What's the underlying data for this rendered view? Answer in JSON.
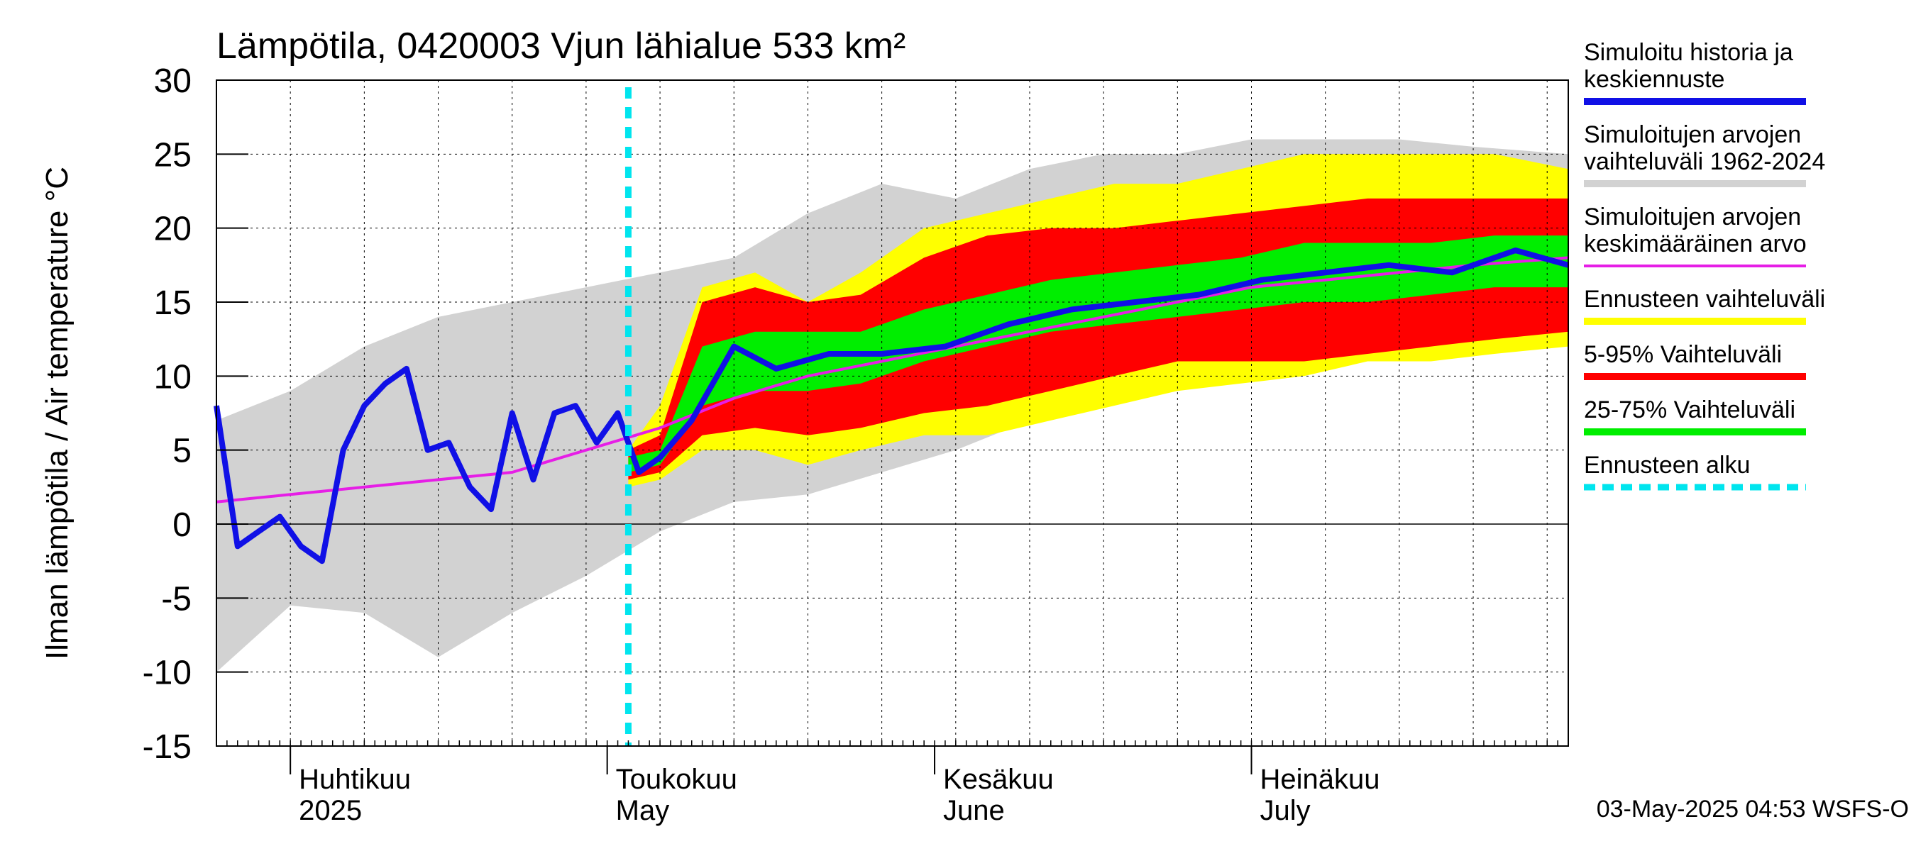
{
  "title": "Lämpötila, 0420003 Vjun lähialue 533 km²",
  "footer": "03-May-2025 04:53 WSFS-O",
  "colors": {
    "history": "#1010e6",
    "range_1962_2024": "#d2d2d2",
    "mean": "#e61ee6",
    "forecast_range": "#ffff00",
    "p5_95": "#ff0000",
    "p25_75": "#00ee00",
    "forecast_start": "#00e5ee"
  },
  "chart_data": {
    "type": "area",
    "title": "Lämpötila, 0420003 Vjun lähialue 533 km²",
    "ylabel": "Ilman lämpötila / Air temperature   °C",
    "ylim": [
      -15,
      30
    ],
    "yticks": [
      -15,
      -10,
      -5,
      0,
      5,
      10,
      15,
      20,
      25,
      30
    ],
    "xlim": [
      "2025-03-25",
      "2025-07-31"
    ],
    "grid": true,
    "forecast_start": "2025-05-03",
    "month_labels": [
      {
        "fi": "Huhtikuu",
        "en": "2025",
        "date": "2025-04-01"
      },
      {
        "fi": "Toukokuu",
        "en": "May",
        "date": "2025-05-01"
      },
      {
        "fi": "Kesäkuu",
        "en": "June",
        "date": "2025-06-01"
      },
      {
        "fi": "Heinäkuu",
        "en": "July",
        "date": "2025-07-01"
      }
    ],
    "legend": {
      "placement": "right",
      "entries": [
        {
          "label": [
            "Simuloitu historia ja",
            "keskiennuste"
          ],
          "color_key": "history",
          "style": "solid"
        },
        {
          "label": [
            "Simuloitujen arvojen",
            "vaihteluväli 1962-2024"
          ],
          "color_key": "range_1962_2024",
          "style": "solid"
        },
        {
          "label": [
            "Simuloitujen arvojen",
            "keskimääräinen arvo"
          ],
          "color_key": "mean",
          "style": "thin"
        },
        {
          "label": [
            "Ennusteen vaihteluväli"
          ],
          "color_key": "forecast_range",
          "style": "solid"
        },
        {
          "label": [
            "5-95% Vaihteluväli"
          ],
          "color_key": "p5_95",
          "style": "solid"
        },
        {
          "label": [
            "25-75% Vaihteluväli"
          ],
          "color_key": "p25_75",
          "style": "solid"
        },
        {
          "label": [
            "Ennusteen alku"
          ],
          "color_key": "forecast_start",
          "style": "dashed"
        }
      ]
    },
    "series": [
      {
        "name": "Simulated history range 1962-2024",
        "kind": "band",
        "x": [
          "2025-03-25",
          "2025-04-01",
          "2025-04-08",
          "2025-04-15",
          "2025-04-22",
          "2025-04-29",
          "2025-05-06",
          "2025-05-13",
          "2025-05-20",
          "2025-05-27",
          "2025-06-03",
          "2025-06-10",
          "2025-06-17",
          "2025-06-24",
          "2025-07-01",
          "2025-07-08",
          "2025-07-15",
          "2025-07-22",
          "2025-07-31"
        ],
        "low": [
          -10,
          -5.5,
          -6,
          -9,
          -6,
          -3.5,
          -0.5,
          1.5,
          2,
          3.5,
          5,
          7,
          8,
          9.5,
          10,
          11,
          12,
          12.5,
          12.5
        ],
        "high": [
          7,
          9,
          12,
          14,
          15,
          16,
          17,
          18,
          21,
          23,
          22,
          24,
          25,
          25,
          26,
          26,
          26,
          25.5,
          25
        ]
      },
      {
        "name": "Forecast range",
        "kind": "band",
        "x": [
          "2025-05-03",
          "2025-05-06",
          "2025-05-10",
          "2025-05-15",
          "2025-05-20",
          "2025-05-25",
          "2025-05-31",
          "2025-06-06",
          "2025-06-12",
          "2025-06-18",
          "2025-06-24",
          "2025-06-30",
          "2025-07-06",
          "2025-07-12",
          "2025-07-18",
          "2025-07-24",
          "2025-07-31"
        ],
        "low": [
          2.5,
          3,
          5,
          5,
          4,
          5,
          6,
          6,
          7,
          8,
          9,
          9.5,
          10,
          11,
          11,
          11.5,
          12
        ],
        "high": [
          5,
          8,
          16,
          17,
          15,
          17,
          20,
          21,
          22,
          23,
          23,
          24,
          25,
          25,
          25,
          25,
          24
        ]
      },
      {
        "name": "5-95% range",
        "kind": "band",
        "x": [
          "2025-05-03",
          "2025-05-06",
          "2025-05-10",
          "2025-05-15",
          "2025-05-20",
          "2025-05-25",
          "2025-05-31",
          "2025-06-06",
          "2025-06-12",
          "2025-06-18",
          "2025-06-24",
          "2025-06-30",
          "2025-07-06",
          "2025-07-12",
          "2025-07-18",
          "2025-07-24",
          "2025-07-31"
        ],
        "low": [
          3,
          3.5,
          6,
          6.5,
          6,
          6.5,
          7.5,
          8,
          9,
          10,
          11,
          11,
          11,
          11.5,
          12,
          12.5,
          13
        ],
        "high": [
          5,
          6,
          15,
          16,
          15,
          15.5,
          18,
          19.5,
          20,
          20,
          20.5,
          21,
          21.5,
          22,
          22,
          22,
          22
        ]
      },
      {
        "name": "25-75% range",
        "kind": "band",
        "x": [
          "2025-05-03",
          "2025-05-06",
          "2025-05-10",
          "2025-05-15",
          "2025-05-20",
          "2025-05-25",
          "2025-05-31",
          "2025-06-06",
          "2025-06-12",
          "2025-06-18",
          "2025-06-24",
          "2025-06-30",
          "2025-07-06",
          "2025-07-12",
          "2025-07-18",
          "2025-07-24",
          "2025-07-31"
        ],
        "low": [
          3.5,
          4,
          8,
          9,
          9,
          9.5,
          11,
          12,
          13,
          13.5,
          14,
          14.5,
          15,
          15,
          15.5,
          16,
          16
        ],
        "high": [
          4.5,
          5,
          12,
          13,
          13,
          13,
          14.5,
          15.5,
          16.5,
          17,
          17.5,
          18,
          19,
          19,
          19,
          19.5,
          19.5
        ]
      },
      {
        "name": "Simulated mean",
        "kind": "line",
        "x": [
          "2025-03-25",
          "2025-04-01",
          "2025-04-08",
          "2025-04-15",
          "2025-04-22",
          "2025-04-29",
          "2025-05-06",
          "2025-05-13",
          "2025-05-20",
          "2025-05-27",
          "2025-06-03",
          "2025-06-10",
          "2025-06-17",
          "2025-06-24",
          "2025-07-01",
          "2025-07-08",
          "2025-07-15",
          "2025-07-22",
          "2025-07-31"
        ],
        "y": [
          1.5,
          2,
          2.5,
          3,
          3.5,
          5,
          6.5,
          8.5,
          10,
          11,
          12,
          13,
          14,
          15,
          16,
          16.5,
          17,
          17.5,
          18
        ]
      },
      {
        "name": "Simulated history and mean forecast",
        "kind": "line",
        "x": [
          "2025-03-25",
          "2025-03-27",
          "2025-03-29",
          "2025-03-31",
          "2025-04-02",
          "2025-04-04",
          "2025-04-06",
          "2025-04-08",
          "2025-04-10",
          "2025-04-12",
          "2025-04-14",
          "2025-04-16",
          "2025-04-18",
          "2025-04-20",
          "2025-04-22",
          "2025-04-24",
          "2025-04-26",
          "2025-04-28",
          "2025-04-30",
          "2025-05-02",
          "2025-05-04",
          "2025-05-06",
          "2025-05-09",
          "2025-05-13",
          "2025-05-17",
          "2025-05-22",
          "2025-05-27",
          "2025-06-02",
          "2025-06-08",
          "2025-06-14",
          "2025-06-20",
          "2025-06-26",
          "2025-07-02",
          "2025-07-08",
          "2025-07-14",
          "2025-07-20",
          "2025-07-26",
          "2025-07-31"
        ],
        "y": [
          8,
          -1.5,
          -0.5,
          0.5,
          -1.5,
          -2.5,
          5,
          8,
          9.5,
          10.5,
          5,
          5.5,
          2.5,
          1,
          7.5,
          3,
          7.5,
          8,
          5.5,
          7.5,
          3.5,
          4.5,
          7,
          12,
          10.5,
          11.5,
          11.5,
          12,
          13.5,
          14.5,
          15,
          15.5,
          16.5,
          17,
          17.5,
          17,
          18.5,
          17.5
        ]
      }
    ]
  }
}
